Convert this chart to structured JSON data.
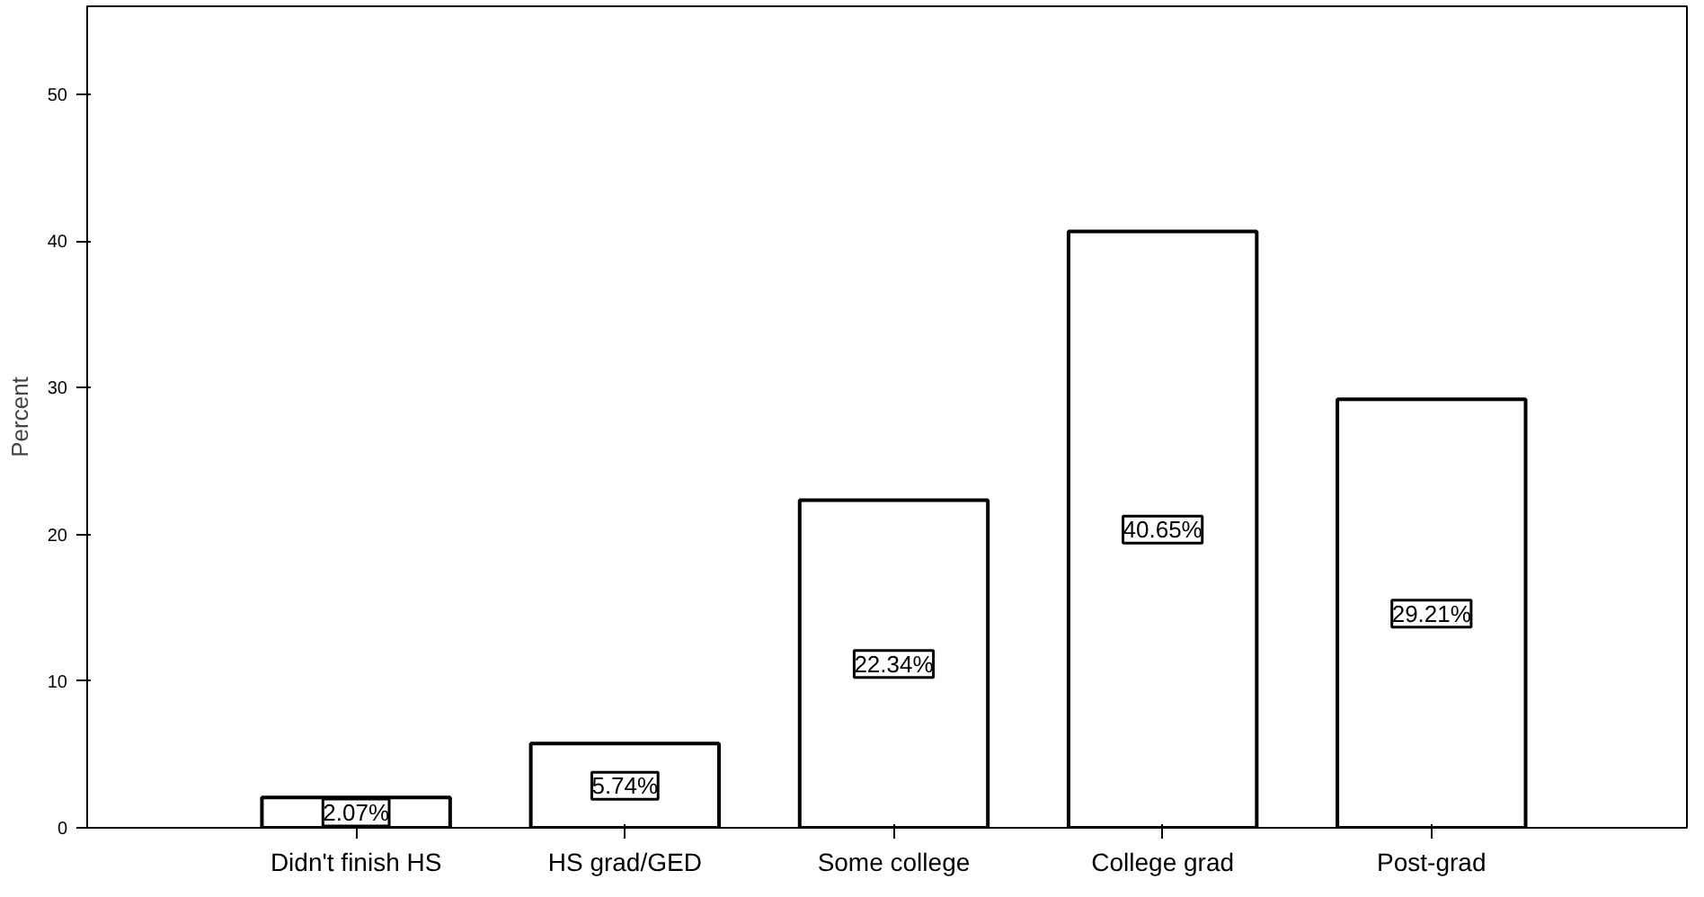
{
  "chart_data": {
    "type": "bar",
    "ylabel": "Percent",
    "categories": [
      "Didn't finish HS",
      "HS grad/GED",
      "Some college",
      "College grad",
      "Post-grad"
    ],
    "values": [
      2.07,
      5.74,
      22.34,
      40.65,
      29.21
    ],
    "value_labels": [
      "2.07%",
      "5.74%",
      "22.34%",
      "40.65%",
      "29.21%"
    ],
    "color": "#ffffff",
    "ylim": [
      0,
      56
    ],
    "yticks": [
      0,
      10,
      20,
      30,
      40,
      50
    ],
    "grid": false
  }
}
